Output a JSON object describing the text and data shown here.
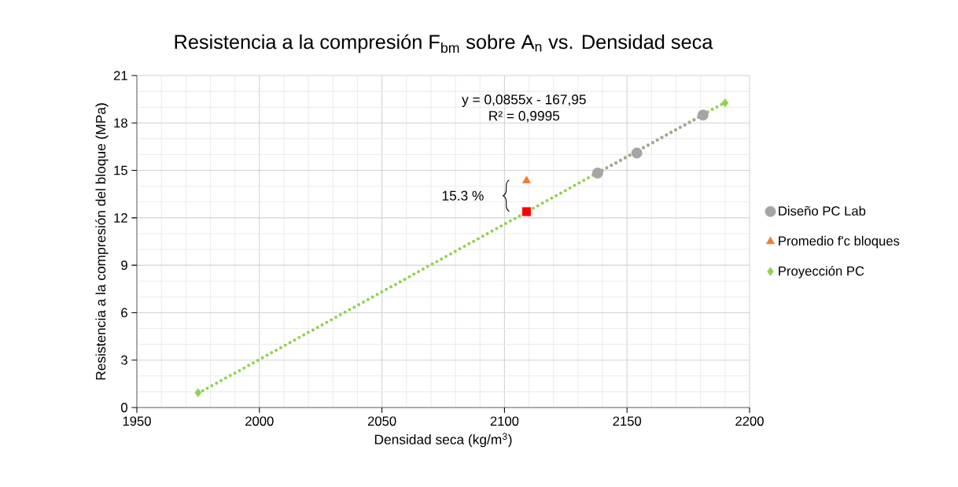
{
  "chart_data": {
    "type": "scatter",
    "title": "Resistencia a la compresión F$_{bm}$ sobre A$_{n}$ vs. Densidad seca",
    "xlabel": "Densidad seca (kg/m$^{3}$)",
    "ylabel": "Resistencia a la compresión del bloque (MPa)",
    "xlim": [
      1950,
      2200
    ],
    "xticks": [
      1950,
      2000,
      2050,
      2100,
      2150,
      2200
    ],
    "ylim": [
      0,
      21
    ],
    "yticks": [
      0,
      3,
      6,
      9,
      12,
      15,
      18,
      21
    ],
    "grid": true,
    "legend": "right",
    "annotations": [
      "y = 0,0855x - 167,95",
      "R² = 0,9995",
      "15.3 %"
    ],
    "series": [
      {
        "type": "line",
        "color": "#92d050",
        "line_style": "dotted",
        "marker": "none",
        "x": [
          1975,
          2190
        ],
        "values": [
          0.9,
          19.3
        ]
      },
      {
        "type": "line",
        "color": "#a5a5a5",
        "line_style": "dotted",
        "marker": "none",
        "x": [
          2138,
          2181
        ],
        "values": [
          14.83,
          18.5
        ]
      },
      {
        "name": "Diseño PC Lab",
        "color": "#a5a5a5",
        "marker": "circle",
        "x": [
          2138,
          2154,
          2181
        ],
        "values": [
          14.83,
          16.1,
          18.5
        ]
      },
      {
        "name": "Promedio f'c bloques",
        "color": "#ed7d31",
        "marker": "triangle",
        "x": [
          2109
        ],
        "values": [
          14.35
        ]
      },
      {
        "name": "Proyección PC",
        "color": "#92d050",
        "marker": "diamond",
        "x": [
          1975,
          2190
        ],
        "values": [
          0.94,
          19.27
        ]
      },
      {
        "color": "#ff0000",
        "marker": "square",
        "x": [
          2109
        ],
        "values": [
          12.39
        ]
      }
    ]
  }
}
